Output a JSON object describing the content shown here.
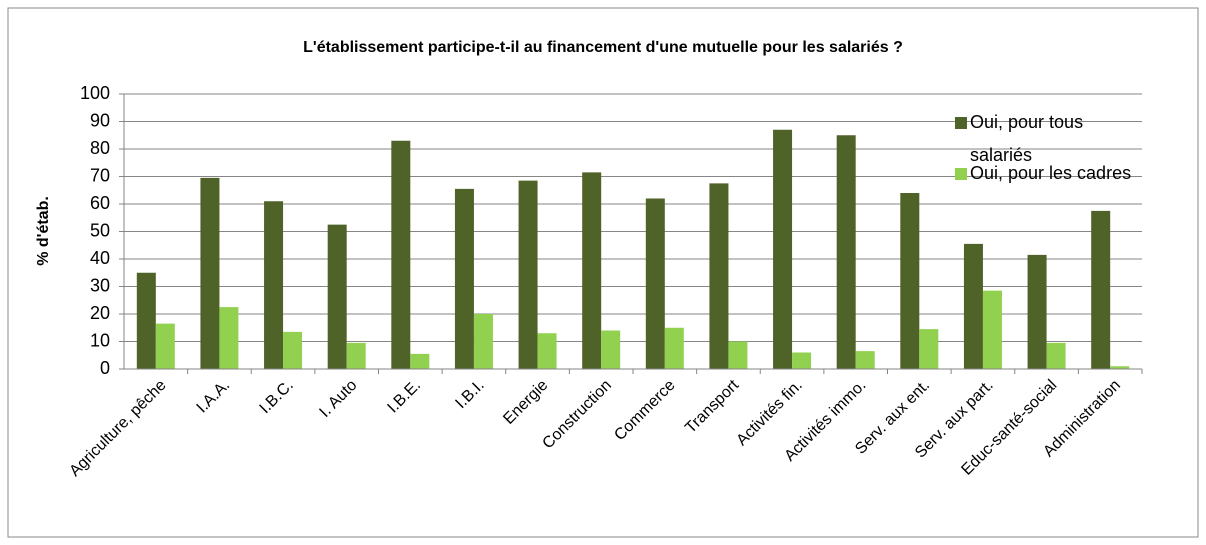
{
  "chart_data": {
    "type": "bar",
    "title": "L'établissement participe-t-il au financement d'une mutuelle pour les salariés ?",
    "y_label": "% d'étab.",
    "categories": [
      "Agriculture, pêche",
      "I.A.A.",
      "I.B.C.",
      "I. Auto",
      "I.B.E.",
      "I.B.I.",
      "Energie",
      "Construction",
      "Commerce",
      "Transport",
      "Activités fin.",
      "Activités immo.",
      "Serv. aux ent.",
      "Serv. aux part.",
      "Educ-santé-social",
      "Administration"
    ],
    "series": [
      {
        "name": "Oui, pour tous salariés",
        "color": "#4f6228",
        "values": [
          35,
          69.5,
          61,
          52.5,
          83,
          65.5,
          68.5,
          71.5,
          62,
          67.5,
          87,
          85,
          64,
          45.5,
          41.5,
          57.5
        ]
      },
      {
        "name": "Oui, pour les cadres",
        "color": "#92d050",
        "values": [
          16.5,
          22.5,
          13.5,
          9.5,
          5.5,
          20,
          13,
          14,
          15,
          10,
          6,
          6.5,
          14.5,
          28.5,
          9.5,
          1
        ]
      }
    ],
    "ylim": [
      0,
      100
    ],
    "yticks": [
      0,
      10,
      20,
      30,
      40,
      50,
      60,
      70,
      80,
      90,
      100
    ],
    "grid": true,
    "legend": "right"
  }
}
